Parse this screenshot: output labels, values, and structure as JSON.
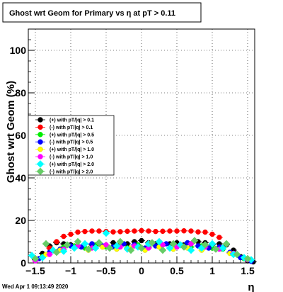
{
  "chart_data": {
    "type": "scatter",
    "title": "Ghost wrt Geom for Primary vs   η at pT > 0.11",
    "xlabel": "η",
    "ylabel": "Ghost wrt Geom (%)",
    "xlim": [
      -1.6,
      1.6
    ],
    "ylim": [
      0,
      110
    ],
    "x_ticks": [
      -1.5,
      -1,
      -0.5,
      0,
      0.5,
      1,
      1.5
    ],
    "x_tick_labels": [
      "−1.5",
      "−1",
      "−0.5",
      "0",
      "0.5",
      "1",
      "1.5"
    ],
    "y_ticks": [
      0,
      20,
      40,
      60,
      80,
      100
    ],
    "y_tick_labels": [
      "0",
      "20",
      "40",
      "60",
      "80",
      "100"
    ],
    "grid": true,
    "legend_position": "middle-left",
    "footer": "Wed Apr  1 09:13:49 2020",
    "series": [
      {
        "name": "(+) with pT/|q| > 0.1",
        "color": "#000000",
        "marker": "circle",
        "x": [
          -1.5,
          -1.4,
          -1.3,
          -1.2,
          -1.1,
          -1.0,
          -0.9,
          -0.8,
          -0.7,
          -0.6,
          -0.5,
          -0.4,
          -0.3,
          -0.2,
          -0.1,
          0.0,
          0.1,
          0.2,
          0.3,
          0.4,
          0.5,
          0.6,
          0.7,
          0.8,
          0.9,
          1.0,
          1.1,
          1.2,
          1.3,
          1.4,
          1.5,
          1.58
        ],
        "y": [
          1.5,
          4.5,
          8.0,
          9.5,
          9.0,
          8.5,
          10.0,
          9.0,
          8.5,
          9.0,
          8.0,
          9.5,
          8.5,
          9.0,
          10.0,
          10.5,
          9.5,
          9.0,
          8.5,
          9.0,
          9.5,
          8.5,
          9.0,
          10.0,
          9.5,
          8.5,
          9.0,
          8.5,
          6.0,
          3.0,
          1.0,
          0.5
        ]
      },
      {
        "name": "(-) with pT/|q| > 0.1",
        "color": "#ff0000",
        "marker": "circle",
        "x": [
          -1.3,
          -1.2,
          -1.1,
          -1.0,
          -0.9,
          -0.8,
          -0.7,
          -0.6,
          -0.5,
          -0.4,
          -0.3,
          -0.2,
          -0.1,
          0.0,
          0.1,
          0.2,
          0.3,
          0.4,
          0.5,
          0.6,
          0.7,
          0.8,
          0.9,
          1.0,
          1.1,
          1.2
        ],
        "y": [
          7.0,
          10.0,
          12.5,
          13.5,
          14.5,
          14.8,
          15.0,
          15.0,
          14.8,
          14.6,
          14.7,
          14.9,
          15.0,
          15.2,
          15.0,
          14.8,
          14.9,
          15.0,
          15.0,
          15.1,
          15.0,
          14.6,
          14.5,
          13.5,
          12.0,
          9.0
        ]
      },
      {
        "name": "(+) with pT/|q| > 0.5",
        "color": "#00ee00",
        "marker": "circle",
        "x": [
          -1.4,
          -1.25,
          -1.1,
          -0.95,
          -0.8,
          -0.65,
          -0.5,
          -0.35,
          -0.2,
          -0.05,
          0.1,
          0.25,
          0.4,
          0.55,
          0.7,
          0.85,
          1.0,
          1.15,
          1.3,
          1.45
        ],
        "y": [
          3.0,
          6.0,
          7.5,
          8.0,
          7.0,
          8.5,
          7.5,
          8.0,
          7.0,
          8.5,
          7.5,
          8.0,
          7.0,
          8.5,
          7.5,
          8.0,
          7.0,
          6.5,
          4.0,
          2.0
        ]
      },
      {
        "name": "(-) with pT/|q| > 0.5",
        "color": "#0000ff",
        "marker": "circle",
        "x": [
          -1.45,
          -1.3,
          -1.15,
          -1.0,
          -0.85,
          -0.7,
          -0.55,
          -0.4,
          -0.25,
          -0.1,
          0.05,
          0.2,
          0.35,
          0.5,
          0.65,
          0.8,
          0.95,
          1.1,
          1.25,
          1.4,
          1.55
        ],
        "y": [
          2.0,
          5.0,
          6.5,
          8.0,
          7.5,
          9.0,
          8.0,
          7.5,
          9.0,
          8.5,
          7.0,
          8.0,
          9.0,
          7.5,
          9.5,
          8.0,
          7.0,
          7.5,
          5.0,
          2.5,
          0.8
        ]
      },
      {
        "name": "(+) with pT/|q| > 1.0",
        "color": "#ffff00",
        "marker": "circle",
        "x": [
          -1.35,
          -1.15,
          -0.95,
          -0.75,
          -0.55,
          -0.35,
          -0.15,
          0.05,
          0.25,
          0.45,
          0.65,
          0.85,
          1.05,
          1.25
        ],
        "y": [
          4.0,
          6.0,
          7.0,
          6.0,
          7.5,
          6.5,
          7.0,
          6.0,
          7.5,
          6.5,
          7.0,
          6.0,
          6.5,
          4.5
        ]
      },
      {
        "name": "(-) with pT/|q| > 1.0",
        "color": "#ff00ff",
        "marker": "circle",
        "x": [
          -1.5,
          -1.3,
          -1.1,
          -0.9,
          -0.7,
          -0.5,
          -0.3,
          -0.1,
          0.1,
          0.3,
          0.5,
          0.7,
          0.9,
          1.1,
          1.3,
          1.5
        ],
        "y": [
          1.0,
          4.0,
          6.5,
          8.0,
          7.0,
          8.5,
          7.5,
          8.0,
          7.0,
          8.5,
          7.5,
          9.0,
          7.5,
          6.5,
          4.5,
          1.5
        ]
      },
      {
        "name": "(+) with pT/|q| > 2.0",
        "color": "#00ffff",
        "marker": "diamond",
        "x": [
          -1.55,
          -1.4,
          -1.25,
          -1.1,
          -0.95,
          -0.8,
          -0.65,
          -0.5,
          -0.35,
          -0.2,
          -0.05,
          0.1,
          0.25,
          0.4,
          0.55,
          0.7,
          0.85,
          1.0,
          1.15,
          1.3,
          1.45,
          1.55
        ],
        "y": [
          3.5,
          2.5,
          6.0,
          5.5,
          7.0,
          9.0,
          7.0,
          14.0,
          8.0,
          6.5,
          7.5,
          9.0,
          10.0,
          7.0,
          8.5,
          6.0,
          7.0,
          9.0,
          7.0,
          4.0,
          2.5,
          1.5
        ]
      },
      {
        "name": "(-) with pT/|q| > 2.0",
        "color": "#66cc66",
        "marker": "diamond",
        "x": [
          -1.5,
          -1.35,
          -1.2,
          -1.05,
          -0.9,
          -0.75,
          -0.6,
          -0.45,
          -0.3,
          -0.15,
          0.0,
          0.15,
          0.3,
          0.45,
          0.6,
          0.75,
          0.9,
          1.05,
          1.2,
          1.35,
          1.5
        ],
        "y": [
          2.0,
          9.0,
          5.0,
          8.5,
          10.0,
          6.5,
          9.5,
          7.0,
          10.0,
          6.0,
          7.0,
          9.5,
          6.0,
          9.0,
          7.5,
          10.5,
          8.5,
          6.5,
          9.0,
          4.0,
          2.0
        ]
      }
    ]
  }
}
